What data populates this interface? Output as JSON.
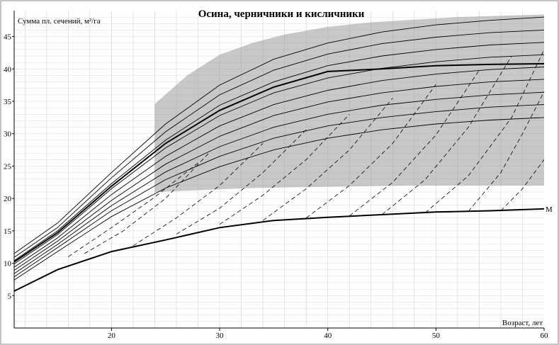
{
  "chart_data": {
    "type": "line",
    "title": "Осина, черничники и кисличники",
    "ylabel": "Сумма пл. сечений, м²/га",
    "xlabel": "Возраст, лет",
    "xlim": [
      11,
      60
    ],
    "ylim": [
      0,
      49
    ],
    "x_ticks": [
      20,
      30,
      40,
      50,
      60
    ],
    "y_ticks": [
      5,
      10,
      15,
      20,
      25,
      30,
      35,
      40,
      45
    ],
    "grid": true,
    "shaded_region": {
      "x": [
        24,
        27,
        30,
        33,
        36,
        40,
        44,
        48,
        52,
        56,
        60
      ],
      "upper": [
        34.6,
        39.0,
        42.2,
        44.0,
        45.3,
        46.5,
        47.2,
        47.6,
        48.0,
        48.2,
        48.4
      ],
      "lower": [
        21.0,
        21.2,
        21.4,
        21.6,
        21.7,
        21.8,
        21.9,
        22.0,
        22.0,
        22.0,
        22.0
      ]
    },
    "series": [
      {
        "name": "",
        "x": [
          11,
          15,
          20,
          25,
          30,
          35,
          40,
          45,
          50,
          55,
          60
        ],
        "values": [
          11.5,
          16.2,
          24.0,
          31.5,
          37.5,
          41.5,
          44.0,
          45.7,
          46.8,
          47.5,
          48.0
        ]
      },
      {
        "name": "",
        "x": [
          11,
          15,
          20,
          25,
          30,
          35,
          40,
          45,
          50,
          55,
          60
        ],
        "values": [
          10.9,
          15.5,
          23.2,
          30.3,
          36.0,
          39.8,
          42.3,
          43.9,
          44.9,
          45.6,
          46.0
        ]
      },
      {
        "name": "",
        "x": [
          11,
          15,
          20,
          25,
          30,
          35,
          40,
          45,
          50,
          55,
          60
        ],
        "values": [
          10.4,
          15.0,
          22.3,
          29.0,
          34.4,
          38.0,
          40.5,
          42.0,
          43.0,
          43.7,
          44.1
        ]
      },
      {
        "name": "",
        "x": [
          11,
          15,
          20,
          25,
          30,
          35,
          40,
          45,
          50,
          55,
          60
        ],
        "values": [
          9.9,
          14.4,
          21.5,
          27.8,
          32.8,
          36.3,
          38.6,
          40.1,
          41.1,
          41.8,
          42.2
        ]
      },
      {
        "name": "",
        "x": [
          11,
          15,
          20,
          25,
          30,
          35,
          40,
          45,
          50,
          55,
          60
        ],
        "values": [
          9.4,
          13.9,
          20.6,
          26.5,
          31.2,
          34.5,
          36.7,
          38.2,
          39.2,
          39.9,
          40.3
        ]
      },
      {
        "name": "",
        "x": [
          11,
          15,
          20,
          25,
          30,
          35,
          40,
          45,
          50,
          55,
          60
        ],
        "values": [
          8.9,
          13.4,
          19.7,
          25.3,
          29.6,
          32.8,
          34.9,
          36.3,
          37.3,
          38.0,
          38.4
        ]
      },
      {
        "name": "",
        "x": [
          11,
          15,
          20,
          25,
          30,
          35,
          40,
          45,
          50,
          55,
          60
        ],
        "values": [
          8.4,
          12.9,
          18.9,
          24.1,
          28.0,
          31.0,
          33.0,
          34.4,
          35.3,
          36.0,
          36.4
        ]
      },
      {
        "name": "",
        "x": [
          11,
          15,
          20,
          25,
          30,
          35,
          40,
          45,
          50,
          55,
          60
        ],
        "values": [
          7.9,
          12.4,
          18.1,
          22.9,
          26.5,
          29.3,
          31.2,
          32.5,
          33.4,
          34.1,
          34.5
        ]
      },
      {
        "name": "",
        "x": [
          11,
          15,
          20,
          25,
          30,
          35,
          40,
          45,
          50,
          55,
          60
        ],
        "values": [
          7.4,
          11.8,
          17.2,
          21.6,
          24.9,
          27.5,
          29.3,
          30.6,
          31.5,
          32.1,
          32.5
        ]
      },
      {
        "name": "",
        "x": [
          11,
          15,
          20,
          25,
          30,
          35,
          40,
          45,
          50,
          55,
          60
        ],
        "values": [
          10.2,
          14.7,
          21.9,
          28.5,
          33.6,
          37.2,
          39.6,
          40.0,
          40.5,
          40.7,
          40.8
        ]
      },
      {
        "name": "M",
        "x": [
          11,
          15,
          20,
          25,
          30,
          35,
          40,
          45,
          50,
          55,
          60
        ],
        "values": [
          5.7,
          9.0,
          11.8,
          13.6,
          15.5,
          16.6,
          17.1,
          17.5,
          17.9,
          18.1,
          18.4
        ]
      }
    ],
    "dashed_lines": [
      {
        "x": [
          16,
          20,
          24,
          28
        ],
        "values": [
          11.0,
          15.5,
          20.2,
          25.5
        ]
      },
      {
        "x": [
          17.5,
          21,
          25,
          29
        ],
        "values": [
          11.5,
          14.9,
          20.0,
          27.0
        ]
      },
      {
        "x": [
          22,
          26,
          30,
          34
        ],
        "values": [
          12.7,
          17.0,
          22.0,
          28.5
        ]
      },
      {
        "x": [
          26,
          30,
          34,
          38
        ],
        "values": [
          14.5,
          18.5,
          24.0,
          30.6
        ]
      },
      {
        "x": [
          30,
          34,
          38,
          42
        ],
        "values": [
          16.0,
          20.5,
          26.0,
          33.0
        ]
      },
      {
        "x": [
          34,
          38,
          42,
          46
        ],
        "values": [
          16.6,
          21.5,
          27.5,
          35.5
        ]
      },
      {
        "x": [
          38,
          42,
          46,
          50
        ],
        "values": [
          17.0,
          22.0,
          28.5,
          37.6
        ]
      },
      {
        "x": [
          42,
          46,
          50,
          54
        ],
        "values": [
          17.3,
          22.5,
          29.8,
          39.8
        ]
      },
      {
        "x": [
          45,
          49,
          53,
          57
        ],
        "values": [
          17.5,
          22.9,
          31.0,
          42.0
        ]
      },
      {
        "x": [
          49,
          53,
          57,
          60
        ],
        "values": [
          17.8,
          23.5,
          32.5,
          43.0
        ]
      },
      {
        "x": [
          53,
          56,
          58,
          60
        ],
        "values": [
          18.0,
          24.0,
          30.0,
          36.5
        ]
      },
      {
        "x": [
          56,
          58,
          60
        ],
        "values": [
          18.1,
          21.5,
          26.0
        ]
      }
    ]
  }
}
